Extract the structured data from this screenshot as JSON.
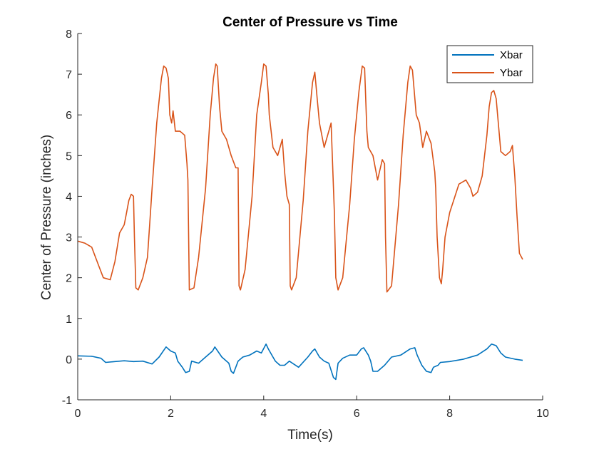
{
  "chart_data": {
    "type": "line",
    "title": "Center of Pressure vs Time",
    "xlabel": "Time(s)",
    "ylabel": "Center of Pressure (inches)",
    "xlim": [
      0,
      10
    ],
    "ylim": [
      -1,
      8
    ],
    "xticks": [
      0,
      2,
      4,
      6,
      8,
      10
    ],
    "yticks": [
      -1,
      0,
      1,
      2,
      3,
      4,
      5,
      6,
      7,
      8
    ],
    "grid": false,
    "legend": "top-right",
    "series": [
      {
        "name": "Xbar",
        "color": "#0072BD",
        "x": [
          0,
          0.3,
          0.5,
          0.6,
          0.8,
          1.0,
          1.2,
          1.4,
          1.6,
          1.75,
          1.9,
          2.0,
          2.1,
          2.15,
          2.25,
          2.32,
          2.4,
          2.45,
          2.6,
          2.75,
          2.9,
          2.95,
          3.1,
          3.25,
          3.3,
          3.35,
          3.45,
          3.55,
          3.7,
          3.85,
          3.95,
          4.05,
          4.1,
          4.2,
          4.25,
          4.35,
          4.45,
          4.55,
          4.75,
          4.95,
          5.05,
          5.1,
          5.2,
          5.3,
          5.4,
          5.5,
          5.55,
          5.6,
          5.7,
          5.85,
          6.0,
          6.1,
          6.15,
          6.25,
          6.3,
          6.35,
          6.45,
          6.6,
          6.75,
          6.95,
          7.15,
          7.25,
          7.3,
          7.4,
          7.5,
          7.6,
          7.65,
          7.75,
          7.8,
          8.0,
          8.3,
          8.6,
          8.8,
          8.9,
          9.0,
          9.1,
          9.2,
          9.4,
          9.57
        ],
        "y": [
          0.08,
          0.07,
          0.02,
          -0.08,
          -0.06,
          -0.04,
          -0.06,
          -0.05,
          -0.12,
          0.05,
          0.3,
          0.2,
          0.15,
          -0.05,
          -0.2,
          -0.33,
          -0.3,
          -0.05,
          -0.1,
          0.05,
          0.2,
          0.3,
          0.05,
          -0.1,
          -0.3,
          -0.35,
          -0.05,
          0.05,
          0.1,
          0.2,
          0.15,
          0.37,
          0.25,
          0.05,
          -0.05,
          -0.15,
          -0.15,
          -0.05,
          -0.2,
          0.05,
          0.2,
          0.25,
          0.05,
          -0.05,
          -0.1,
          -0.45,
          -0.5,
          -0.1,
          0.02,
          0.1,
          0.1,
          0.25,
          0.28,
          0.1,
          -0.05,
          -0.3,
          -0.3,
          -0.15,
          0.05,
          0.1,
          0.25,
          0.28,
          0.1,
          -0.15,
          -0.3,
          -0.33,
          -0.2,
          -0.15,
          -0.08,
          -0.06,
          0.0,
          0.1,
          0.25,
          0.37,
          0.33,
          0.15,
          0.05,
          0.0,
          -0.03
        ]
      },
      {
        "name": "Ybar",
        "color": "#D95319",
        "x": [
          0,
          0.15,
          0.3,
          0.45,
          0.55,
          0.7,
          0.8,
          0.9,
          1.0,
          1.05,
          1.1,
          1.15,
          1.2,
          1.22,
          1.25,
          1.3,
          1.4,
          1.5,
          1.6,
          1.7,
          1.8,
          1.85,
          1.9,
          1.95,
          1.98,
          2.02,
          2.05,
          2.1,
          2.2,
          2.3,
          2.35,
          2.37,
          2.4,
          2.5,
          2.6,
          2.75,
          2.85,
          2.92,
          2.97,
          3.0,
          3.05,
          3.1,
          3.2,
          3.3,
          3.4,
          3.45,
          3.47,
          3.5,
          3.6,
          3.75,
          3.85,
          3.95,
          4.0,
          4.05,
          4.1,
          4.12,
          4.2,
          4.3,
          4.4,
          4.45,
          4.5,
          4.55,
          4.57,
          4.6,
          4.7,
          4.85,
          4.95,
          5.05,
          5.1,
          5.15,
          5.2,
          5.3,
          5.45,
          5.52,
          5.55,
          5.6,
          5.7,
          5.85,
          5.95,
          6.05,
          6.12,
          6.17,
          6.22,
          6.25,
          6.35,
          6.45,
          6.55,
          6.6,
          6.62,
          6.65,
          6.75,
          6.9,
          7.0,
          7.1,
          7.15,
          7.2,
          7.28,
          7.35,
          7.42,
          7.5,
          7.6,
          7.68,
          7.7,
          7.73,
          7.78,
          7.82,
          7.85,
          7.9,
          8.0,
          8.2,
          8.35,
          8.45,
          8.5,
          8.6,
          8.7,
          8.8,
          8.85,
          8.9,
          8.95,
          9.0,
          9.1,
          9.2,
          9.3,
          9.35,
          9.4,
          9.45,
          9.5,
          9.57
        ],
        "y": [
          2.9,
          2.85,
          2.75,
          2.3,
          2.0,
          1.95,
          2.4,
          3.1,
          3.3,
          3.6,
          3.9,
          4.05,
          4.0,
          3.0,
          1.75,
          1.7,
          2.0,
          2.5,
          4.2,
          5.8,
          6.9,
          7.2,
          7.15,
          6.9,
          6.0,
          5.8,
          6.1,
          5.6,
          5.6,
          5.5,
          4.8,
          4.4,
          1.7,
          1.75,
          2.5,
          4.2,
          6.0,
          6.9,
          7.25,
          7.2,
          6.2,
          5.6,
          5.4,
          5.0,
          4.7,
          4.7,
          1.8,
          1.7,
          2.2,
          4.0,
          6.0,
          6.8,
          7.25,
          7.2,
          6.5,
          6.0,
          5.2,
          5.0,
          5.4,
          4.6,
          4.0,
          3.8,
          1.8,
          1.7,
          2.0,
          3.9,
          5.6,
          6.8,
          7.05,
          6.4,
          5.8,
          5.2,
          5.8,
          3.6,
          2.0,
          1.7,
          2.0,
          3.8,
          5.4,
          6.6,
          7.2,
          7.15,
          5.6,
          5.2,
          5.0,
          4.4,
          4.9,
          4.8,
          3.0,
          1.65,
          1.8,
          3.8,
          5.5,
          6.8,
          7.2,
          7.1,
          6.0,
          5.8,
          5.2,
          5.6,
          5.3,
          4.6,
          4.2,
          3.0,
          2.0,
          1.85,
          2.2,
          3.0,
          3.6,
          4.3,
          4.4,
          4.2,
          4.0,
          4.1,
          4.5,
          5.5,
          6.2,
          6.55,
          6.6,
          6.4,
          5.1,
          5.0,
          5.1,
          5.25,
          4.5,
          3.5,
          2.6,
          2.45
        ]
      }
    ]
  }
}
